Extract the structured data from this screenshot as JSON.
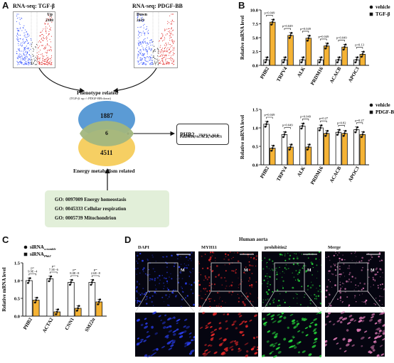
{
  "panels": {
    "A": {
      "letter": "A",
      "volcano_left": {
        "title": "RNA-seq: TGF-β",
        "tag": "Up",
        "count": "2388"
      },
      "volcano_right": {
        "title": "RNA-seq: PDGF-BB",
        "tag": "Down",
        "count": "2429"
      },
      "phenotype_label": "Phenotype related",
      "phenotype_sub": "(TGF-β: up ∩ PDGF-BB:down)",
      "venn_top": "1887",
      "venn_mid": "6",
      "venn_bottom": "4511",
      "energy_label": "Energy metabolism related",
      "genes_main": "PHB2,",
      "genes_line1_rest": "TRPV4, ALK,",
      "genes_line2": "PRDM16, ACACB, APOC3",
      "go_terms": [
        "GO: 0097009 Energy homeostasis",
        "GO: 0045333 Cellular respiration",
        "GO: 0005739 Mitochondrion"
      ]
    },
    "B": {
      "letter": "B"
    },
    "C": {
      "letter": "C"
    },
    "D": {
      "letter": "D",
      "title": "Human aorta",
      "channels": [
        "DAPI",
        "MYH11",
        "prohibitin2",
        "Merge"
      ],
      "marker": "M"
    }
  },
  "chart_data": [
    {
      "type": "bar",
      "ylabel": "Relative mRNA level",
      "categories": [
        "PHB2",
        "TRPV4",
        "ALK",
        "PRDM16",
        "ACACB",
        "APOC3"
      ],
      "ylim": [
        0,
        10
      ],
      "yticks": [
        "0.0",
        "2.5",
        "5.0",
        "7.5",
        "10.0"
      ],
      "legend": [
        "vehicle",
        "TGF-β"
      ],
      "series": [
        {
          "name": "vehicle",
          "values": [
            1.0,
            1.0,
            1.0,
            1.0,
            1.0,
            1.0
          ]
        },
        {
          "name": "TGF-β",
          "values": [
            7.8,
            5.4,
            4.9,
            3.5,
            3.3,
            2.0
          ]
        }
      ],
      "pvalues": [
        "p=0.049",
        "p=0.049",
        "p=0.049",
        "p=0.049",
        "p=0.049",
        "p=0.13"
      ]
    },
    {
      "type": "bar",
      "ylabel": "Relative mRNA level",
      "categories": [
        "PHB2",
        "TRPV4",
        "ALK",
        "PRDM16",
        "ACACB",
        "APOC3"
      ],
      "ylim": [
        0,
        1.5
      ],
      "yticks": [
        "0.0",
        "0.5",
        "1.0",
        "1.5"
      ],
      "legend": [
        "vehicle",
        "PDGF-BB"
      ],
      "series": [
        {
          "name": "vehicle",
          "values": [
            1.1,
            0.82,
            1.05,
            1.0,
            0.88,
            0.95
          ]
        },
        {
          "name": "PDGF-BB",
          "values": [
            0.45,
            0.48,
            0.48,
            0.85,
            0.85,
            0.82
          ]
        }
      ],
      "pvalues": [
        "p=0.049",
        "p=0.049",
        "p=0.049",
        "p=0.27",
        "p=0.82",
        "p=0.27"
      ]
    },
    {
      "type": "bar",
      "ylabel": "Relative mRNA level",
      "categories": [
        "PHB2",
        "ACTA2",
        "CNN1",
        "SM22α"
      ],
      "ylim": [
        0,
        1.5
      ],
      "yticks": [
        "0.0",
        "0.5",
        "1.0",
        "1.5"
      ],
      "legend": [
        "siRNA",
        "siRNA"
      ],
      "legend_subscripts": [
        "scramble",
        "Phb2"
      ],
      "series": [
        {
          "name": "siRNA scramble",
          "values": [
            1.0,
            1.05,
            0.95,
            0.95
          ]
        },
        {
          "name": "siRNA Phb2",
          "values": [
            0.45,
            0.12,
            0.22,
            0.4
          ]
        }
      ],
      "pvalues": [
        "p=\n9.9E−4",
        "p=\n7.3E−6",
        "p=\n8.0E−8",
        "p=\n2.6E−8"
      ]
    }
  ],
  "colors": {
    "vehicle": "#ffffff",
    "treated": "#f5b335",
    "venn_top": "#5b9bd5",
    "venn_bottom": "#f6cf63",
    "go_box": "#e2efd9"
  }
}
